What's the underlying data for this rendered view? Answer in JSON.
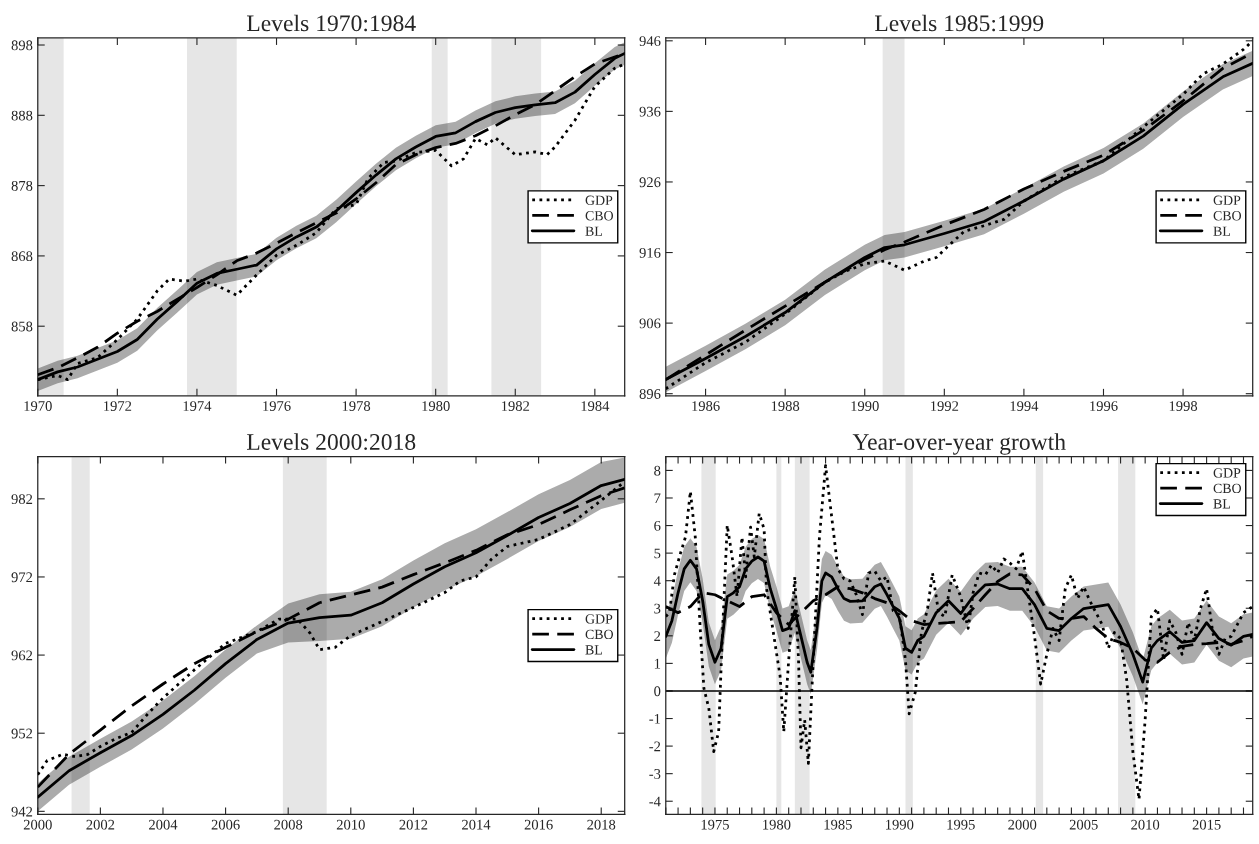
{
  "chart_data": [
    {
      "type": "line",
      "title": "Levels 1970:1984",
      "xlim": [
        1970,
        1984.75
      ],
      "xticks": [
        1970,
        1972,
        1974,
        1976,
        1978,
        1980,
        1982,
        1984
      ],
      "ylim": [
        848.1,
        899
      ],
      "yticks": [
        858,
        868,
        878,
        888,
        898
      ],
      "legend": "right",
      "bands": [
        {
          "axis": "x",
          "from": 1970,
          "to": 1970.65,
          "color": "#e6e6e6"
        },
        {
          "axis": "x",
          "from": 1973.75,
          "to": 1975,
          "color": "#e6e6e6"
        },
        {
          "axis": "x",
          "from": 1979.9,
          "to": 1980.3,
          "color": "#e6e6e6"
        },
        {
          "axis": "x",
          "from": 1981.4,
          "to": 1982.65,
          "color": "#e6e6e6"
        }
      ],
      "series": [
        {
          "name": "GDP",
          "color": "#000000",
          "line_style": "dotted",
          "x": [
            1970,
            1970.5,
            1970.75,
            1971,
            1971.5,
            1972,
            1972.5,
            1973,
            1973.3,
            1973.7,
            1974,
            1974.5,
            1975,
            1975.5,
            1976,
            1976.5,
            1977,
            1977.5,
            1978,
            1978.3,
            1978.7,
            1979,
            1979.5,
            1980,
            1980.4,
            1980.7,
            1981,
            1981.3,
            1981.5,
            1982,
            1982.5,
            1982.8,
            1983,
            1983.5,
            1984,
            1984.5,
            1984.75
          ],
          "values": [
            850.4,
            851,
            850.4,
            852.7,
            853.5,
            856.1,
            859,
            863,
            864.7,
            864.4,
            864.7,
            863.8,
            862.4,
            865.3,
            868.1,
            869.5,
            871.3,
            874.7,
            875.3,
            879,
            881.3,
            881.5,
            882.7,
            883,
            880.8,
            881.8,
            884.7,
            883.8,
            884.8,
            882.4,
            882.8,
            882.4,
            883.5,
            887.3,
            892.1,
            894.7,
            895.3
          ]
        },
        {
          "name": "CBO",
          "color": "#000000",
          "line_style": "dashed",
          "x": [
            1970,
            1970.5,
            1971,
            1971.5,
            1972,
            1972.5,
            1973,
            1973.5,
            1974,
            1974.5,
            1975,
            1975.5,
            1976,
            1976.5,
            1977,
            1977.5,
            1978,
            1978.5,
            1979,
            1979.5,
            1980,
            1980.5,
            1981,
            1981.5,
            1982,
            1982.5,
            1983,
            1983.5,
            1984,
            1984.75
          ],
          "values": [
            851.1,
            852.1,
            853.5,
            855,
            857,
            858.7,
            860.1,
            861.8,
            863.5,
            865.3,
            867.3,
            868.4,
            869.8,
            871.3,
            872.7,
            874.1,
            876.1,
            878.4,
            881,
            882.4,
            883.4,
            884,
            885.1,
            886.5,
            888.1,
            889.5,
            891.5,
            893.5,
            895.3,
            896.8
          ]
        },
        {
          "name": "BL",
          "color": "#000000",
          "line_style": "solid",
          "x": [
            1970,
            1970.5,
            1971,
            1971.5,
            1972,
            1972.5,
            1973,
            1973.5,
            1974,
            1974.5,
            1975,
            1975.5,
            1976,
            1976.5,
            1977,
            1977.5,
            1978,
            1978.5,
            1979,
            1979.5,
            1980,
            1980.5,
            1981,
            1981.5,
            1982,
            1982.5,
            1983,
            1983.5,
            1984,
            1984.5,
            1984.75
          ],
          "values": [
            850.4,
            851.5,
            852.2,
            853.3,
            854.4,
            856.1,
            859,
            861.5,
            864.1,
            865.5,
            866.1,
            866.7,
            869,
            870.7,
            872.1,
            874.4,
            877,
            879.5,
            881.8,
            883.5,
            885,
            885.5,
            887.1,
            888.4,
            889.1,
            889.5,
            889.8,
            891.3,
            893.8,
            896.1,
            896.8
          ],
          "lower": [
            848.8,
            849.9,
            850.6,
            851.7,
            852.8,
            854.5,
            857.4,
            859.9,
            862.5,
            863.9,
            864.5,
            865.1,
            867.4,
            869.1,
            870.5,
            872.8,
            875.4,
            877.9,
            880.2,
            881.9,
            883.4,
            883.9,
            885.5,
            886.8,
            887.5,
            887.9,
            888.2,
            889.7,
            892.2,
            894.5,
            895.2
          ],
          "upper": [
            852,
            853.1,
            853.8,
            854.9,
            856,
            857.7,
            860.6,
            863.1,
            865.7,
            867.1,
            867.7,
            868.3,
            870.6,
            872.3,
            873.7,
            876,
            878.6,
            881.1,
            883.4,
            885.1,
            886.6,
            887.1,
            888.7,
            890,
            890.7,
            891.1,
            891.4,
            892.9,
            895.4,
            897.7,
            898.4
          ]
        }
      ]
    },
    {
      "type": "line",
      "title": "Levels 1985:1999",
      "xlim": [
        1985,
        1999.75
      ],
      "xticks": [
        1986,
        1988,
        1990,
        1992,
        1994,
        1996,
        1998
      ],
      "ylim": [
        895.7,
        946.4
      ],
      "yticks": [
        896,
        906,
        916,
        926,
        936,
        946
      ],
      "legend": "right",
      "bands": [
        {
          "axis": "x",
          "from": 1990.45,
          "to": 1991,
          "color": "#e6e6e6"
        }
      ],
      "series": [
        {
          "name": "GDP",
          "color": "#000000",
          "line_style": "dotted",
          "x": [
            1985,
            1986,
            1987,
            1988,
            1989,
            1989.5,
            1990,
            1990.5,
            1991,
            1991.5,
            1991.8,
            1992,
            1992.5,
            1993,
            1993.5,
            1994,
            1995,
            1996,
            1997,
            1998,
            1998.5,
            1999,
            1999.5,
            1999.75
          ],
          "values": [
            896.7,
            900.4,
            903.3,
            907.3,
            911.8,
            913.3,
            914.4,
            914.8,
            913.5,
            914.8,
            915.3,
            916.4,
            919,
            919.8,
            920.7,
            923.3,
            926.7,
            929,
            933.8,
            938.4,
            941.3,
            942.7,
            944.7,
            946
          ]
        },
        {
          "name": "CBO",
          "color": "#000000",
          "line_style": "dashed",
          "x": [
            1985,
            1986,
            1987,
            1988,
            1989,
            1990,
            1990.5,
            1991,
            1992,
            1993,
            1994,
            1995,
            1996,
            1997,
            1998,
            1999,
            1999.75
          ],
          "values": [
            898,
            901.5,
            905,
            908.4,
            911.8,
            915,
            916.4,
            917.5,
            919.9,
            922.1,
            925,
            927.5,
            929.8,
            933.3,
            937.5,
            942.1,
            944.3
          ]
        },
        {
          "name": "BL",
          "color": "#000000",
          "line_style": "solid",
          "x": [
            1985,
            1986,
            1987,
            1988,
            1989,
            1990,
            1990.5,
            1991,
            1992,
            1993,
            1994,
            1995,
            1996,
            1997,
            1998,
            1999,
            1999.75
          ],
          "values": [
            898,
            901,
            904.1,
            907.5,
            911.8,
            915.3,
            916.7,
            917.1,
            918.7,
            920.4,
            923.3,
            926.4,
            929,
            932.5,
            937,
            940.9,
            942.8
          ],
          "lower": [
            896.2,
            899.2,
            902.3,
            905.7,
            910,
            913.5,
            914.9,
            915.3,
            916.9,
            918.6,
            921.5,
            924.6,
            927.2,
            930.7,
            935.2,
            939.1,
            941
          ],
          "upper": [
            899.8,
            902.8,
            905.9,
            909.3,
            913.6,
            917.1,
            918.5,
            918.9,
            920.5,
            922.2,
            925.1,
            928.2,
            930.8,
            934.3,
            938.8,
            942.7,
            944.6
          ]
        }
      ]
    },
    {
      "type": "line",
      "title": "Levels 2000:2018",
      "xlim": [
        2000,
        2018.75
      ],
      "xticks": [
        2000,
        2002,
        2004,
        2006,
        2008,
        2010,
        2012,
        2014,
        2016,
        2018
      ],
      "ylim": [
        941.6,
        987.4
      ],
      "yticks": [
        942,
        952,
        962,
        972,
        982
      ],
      "legend": "right",
      "bands": [
        {
          "axis": "x",
          "from": 2001.08,
          "to": 2001.66,
          "color": "#e6e6e6"
        },
        {
          "axis": "x",
          "from": 2007.83,
          "to": 2009.23,
          "color": "#e6e6e6"
        }
      ],
      "series": [
        {
          "name": "GDP",
          "color": "#000000",
          "line_style": "dotted",
          "x": [
            2000,
            2000.3,
            2000.8,
            2001.2,
            2001.6,
            2002,
            2002.5,
            2003,
            2003.5,
            2004,
            2005,
            2006,
            2007,
            2007.7,
            2008.3,
            2008.7,
            2009,
            2009.5,
            2010,
            2011,
            2012,
            2013,
            2013.5,
            2014,
            2014.5,
            2015,
            2016,
            2017,
            2018,
            2018.75
          ],
          "values": [
            946.7,
            948.5,
            949.3,
            949,
            949.3,
            950.3,
            951.3,
            952.1,
            954.4,
            956.5,
            960.1,
            963.5,
            965,
            966.6,
            966.6,
            964.8,
            962.7,
            963,
            964.5,
            966.3,
            968.1,
            970,
            971.5,
            972,
            974.3,
            975.9,
            976.8,
            978.7,
            981.8,
            984.2
          ]
        },
        {
          "name": "CBO",
          "color": "#000000",
          "line_style": "dashed",
          "x": [
            2000,
            2001,
            2002,
            2003,
            2004,
            2005,
            2006,
            2007,
            2008,
            2009,
            2010,
            2011,
            2012,
            2013,
            2014,
            2015,
            2016,
            2017,
            2018,
            2018.75
          ],
          "values": [
            945.1,
            949.3,
            952.4,
            955.5,
            958.3,
            960.9,
            963,
            965,
            966.6,
            968.7,
            969.7,
            970.7,
            972.3,
            973.8,
            975.4,
            977.4,
            978.7,
            980.6,
            982.4,
            983.4
          ]
        },
        {
          "name": "BL",
          "color": "#000000",
          "line_style": "solid",
          "x": [
            2000,
            2001,
            2002,
            2003,
            2004,
            2005,
            2006,
            2007,
            2008,
            2009,
            2010,
            2011,
            2012,
            2013,
            2014,
            2015,
            2016,
            2017,
            2018,
            2018.75
          ],
          "values": [
            943.8,
            947.2,
            949.5,
            951.7,
            954.4,
            957.5,
            960.9,
            964,
            966.1,
            966.8,
            967.1,
            968.7,
            971.1,
            973.3,
            975.1,
            977.3,
            979.6,
            981.4,
            983.7,
            984.5
          ],
          "lower": [
            942,
            945.4,
            947.7,
            949.9,
            952.6,
            955.7,
            959.1,
            962.2,
            963.6,
            963.8,
            964.1,
            965.7,
            968.1,
            970.3,
            972.1,
            974.3,
            976.6,
            978.4,
            980.7,
            981.5
          ],
          "upper": [
            945.6,
            949,
            951.3,
            953.5,
            956.2,
            959.3,
            962.7,
            965.8,
            968.6,
            969.8,
            970.1,
            971.7,
            974.1,
            976.3,
            978.1,
            980.3,
            982.6,
            984.4,
            986.7,
            987.3
          ]
        }
      ]
    },
    {
      "type": "line",
      "title": "Year-over-year growth",
      "xlim": [
        1971,
        2018.75
      ],
      "xticks": [
        {
          "value": 1971,
          "label": null
        },
        {
          "value": 1972,
          "label": null
        },
        {
          "value": 1973,
          "label": null
        },
        {
          "value": 1974,
          "label": null
        },
        1975,
        {
          "value": 1976,
          "label": null
        },
        {
          "value": 1977,
          "label": null
        },
        {
          "value": 1978,
          "label": null
        },
        {
          "value": 1979,
          "label": null
        },
        1980,
        {
          "value": 1981,
          "label": null
        },
        {
          "value": 1982,
          "label": null
        },
        {
          "value": 1983,
          "label": null
        },
        {
          "value": 1984,
          "label": null
        },
        1985,
        {
          "value": 1986,
          "label": null
        },
        {
          "value": 1987,
          "label": null
        },
        {
          "value": 1988,
          "label": null
        },
        {
          "value": 1989,
          "label": null
        },
        1990,
        {
          "value": 1991,
          "label": null
        },
        {
          "value": 1992,
          "label": null
        },
        {
          "value": 1993,
          "label": null
        },
        {
          "value": 1994,
          "label": null
        },
        1995,
        {
          "value": 1996,
          "label": null
        },
        {
          "value": 1997,
          "label": null
        },
        {
          "value": 1998,
          "label": null
        },
        {
          "value": 1999,
          "label": null
        },
        2000,
        {
          "value": 2001,
          "label": null
        },
        {
          "value": 2002,
          "label": null
        },
        {
          "value": 2003,
          "label": null
        },
        {
          "value": 2004,
          "label": null
        },
        2005,
        {
          "value": 2006,
          "label": null
        },
        {
          "value": 2007,
          "label": null
        },
        {
          "value": 2008,
          "label": null
        },
        {
          "value": 2009,
          "label": null
        },
        2010,
        {
          "value": 2011,
          "label": null
        },
        {
          "value": 2012,
          "label": null
        },
        {
          "value": 2013,
          "label": null
        },
        {
          "value": 2014,
          "label": null
        },
        2015,
        {
          "value": 2016,
          "label": null
        },
        {
          "value": 2017,
          "label": null
        },
        {
          "value": 2018,
          "label": null
        }
      ],
      "ylim": [
        -4.48,
        8.5
      ],
      "yticks": [
        -4,
        -3,
        -2,
        -1,
        0,
        1,
        2,
        3,
        4,
        5,
        6,
        7,
        8
      ],
      "legend": "top right",
      "ref_lines": [
        {
          "axis": "y",
          "value": 0,
          "color": "#000000",
          "line_style": "solid"
        }
      ],
      "bands": [
        {
          "axis": "x",
          "from": 1973.9,
          "to": 1975.06,
          "color": "#e6e6e6"
        },
        {
          "axis": "x",
          "from": 1980,
          "to": 1980.4,
          "color": "#e6e6e6"
        },
        {
          "axis": "x",
          "from": 1981.5,
          "to": 1982.7,
          "color": "#e6e6e6"
        },
        {
          "axis": "x",
          "from": 1990.5,
          "to": 1991.1,
          "color": "#e6e6e6"
        },
        {
          "axis": "x",
          "from": 2001.1,
          "to": 2001.7,
          "color": "#e6e6e6"
        },
        {
          "axis": "x",
          "from": 2007.8,
          "to": 2009.2,
          "color": "#e6e6e6"
        }
      ],
      "series": [
        {
          "name": "GDP",
          "color": "#000000",
          "line_style": "dotted",
          "x": [
            1971,
            1971.3,
            1971.7,
            1972.2,
            1972.6,
            1973,
            1973.4,
            1973.8,
            1974.1,
            1974.5,
            1974.9,
            1975.3,
            1975.6,
            1976,
            1976.4,
            1976.8,
            1977.2,
            1977.5,
            1977.9,
            1978.2,
            1978.6,
            1979,
            1979.2,
            1979.7,
            1980,
            1980.3,
            1980.6,
            1981,
            1981.5,
            1981.8,
            1982,
            1982.3,
            1982.6,
            1983,
            1983.5,
            1984,
            1984.5,
            1985,
            1985.5,
            1986,
            1986.5,
            1987,
            1987.5,
            1988,
            1988.5,
            1989,
            1989.5,
            1990,
            1990.5,
            1990.8,
            1991.3,
            1991.8,
            1992.3,
            1992.7,
            1993.2,
            1993.7,
            1994.3,
            1995,
            1995.6,
            1996,
            1996.5,
            1997,
            1997.5,
            1998,
            1998.5,
            1999,
            1999.5,
            2000,
            2000.5,
            2001,
            2001.5,
            2002,
            2002.5,
            2003,
            2003.5,
            2004,
            2004.5,
            2005,
            2005.5,
            2006,
            2006.5,
            2007,
            2007.5,
            2008,
            2008.5,
            2009,
            2009.5,
            2010,
            2010.5,
            2011,
            2011.5,
            2012,
            2012.5,
            2013,
            2013.5,
            2014,
            2014.5,
            2015,
            2015.5,
            2016,
            2016.5,
            2017,
            2017.5,
            2018,
            2018.75
          ],
          "values": [
            2.7,
            2.84,
            4.21,
            5,
            5.58,
            7.24,
            5.58,
            2.27,
            0.1,
            -0.62,
            -2.2,
            -1.48,
            1.98,
            6.01,
            4.86,
            3.42,
            5.58,
            4.14,
            5.94,
            4.86,
            6.44,
            5.87,
            3.71,
            2.27,
            1.4,
            0.54,
            -1.48,
            1.12,
            4.14,
            1.12,
            -2.06,
            -1.05,
            -2.63,
            1.12,
            5.58,
            8.17,
            6.3,
            4.43,
            4.07,
            3.99,
            3.49,
            2.77,
            4.28,
            4.35,
            3.99,
            4.14,
            2.91,
            2.77,
            1.12,
            -0.83,
            -0.04,
            2.12,
            2.99,
            4.28,
            2.84,
            2.7,
            4.21,
            3.42,
            2.27,
            3.56,
            4.28,
            4.21,
            4.57,
            4.28,
            4.79,
            4.64,
            4.43,
            5.07,
            3.49,
            1.98,
            0.25,
            1.33,
            2.27,
            1.83,
            3.71,
            4.21,
            3.35,
            3.78,
            3.27,
            2.84,
            2.41,
            1.55,
            2.12,
            1.9,
            0.39,
            -2.2,
            -3.93,
            -1.04,
            2.7,
            2.99,
            1.12,
            2.55,
            2.12,
            1.33,
            2.48,
            1.83,
            2.99,
            3.71,
            2.12,
            1.33,
            1.9,
            1.98,
            2.41,
            2.84,
            3.06
          ]
        },
        {
          "name": "CBO",
          "color": "#000000",
          "line_style": "dashed",
          "x": [
            1971,
            1972,
            1973,
            1974,
            1975,
            1976,
            1977,
            1978,
            1979,
            1980,
            1981,
            1982,
            1983,
            1984,
            1985,
            1986,
            1987,
            1988,
            1989,
            1990,
            1991,
            1992,
            1993,
            1994,
            1995,
            1996,
            1997,
            1998,
            1999,
            2000,
            2001,
            2002,
            2003,
            2004,
            2005,
            2006,
            2007,
            2008,
            2009,
            2010,
            2011,
            2012,
            2013,
            2014,
            2015,
            2016,
            2017,
            2018,
            2018.75
          ],
          "values": [
            3.06,
            2.84,
            3.06,
            3.56,
            3.49,
            3.27,
            3.06,
            3.42,
            3.49,
            2.84,
            2.41,
            2.84,
            3.27,
            3.49,
            3.78,
            3.71,
            3.56,
            3.35,
            3.2,
            2.91,
            2.55,
            2.41,
            2.45,
            2.48,
            2.52,
            2.99,
            3.49,
            3.97,
            4.25,
            4.21,
            3.71,
            2.91,
            2.63,
            2.63,
            2.7,
            2.27,
            1.9,
            1.76,
            1.55,
            1.12,
            1.04,
            1.4,
            1.62,
            1.69,
            1.72,
            1.76,
            1.69,
            1.83,
            1.98
          ]
        },
        {
          "name": "BL",
          "color": "#000000",
          "line_style": "solid",
          "x": [
            1971,
            1971.5,
            1972,
            1972.5,
            1973,
            1973.5,
            1974,
            1974.5,
            1975,
            1975.5,
            1976,
            1976.5,
            1977,
            1977.5,
            1978,
            1978.5,
            1979,
            1979.5,
            1980,
            1980.5,
            1981,
            1981.5,
            1982,
            1982.5,
            1982.8,
            1983.3,
            1983.7,
            1984,
            1984.5,
            1985,
            1985.5,
            1986,
            1987,
            1988,
            1988.5,
            1989,
            1989.5,
            1990,
            1990.5,
            1991,
            1991.5,
            1992,
            1993,
            1994,
            1995,
            1996,
            1997,
            1998,
            1999,
            2000,
            2001,
            2002,
            2003,
            2004,
            2005,
            2006,
            2007,
            2008,
            2009,
            2009.8,
            2010.5,
            2011,
            2012,
            2013,
            2014,
            2015,
            2016,
            2017,
            2018,
            2018.75
          ],
          "values": [
            1.98,
            2.55,
            3.56,
            4.43,
            4.74,
            4.43,
            3.27,
            1.69,
            1.04,
            1.55,
            3.42,
            3.56,
            3.78,
            4.43,
            4.71,
            4.86,
            4.71,
            3.71,
            2.99,
            2.19,
            2.27,
            2.91,
            1.98,
            1.04,
            0.68,
            2.27,
            3.99,
            4.28,
            4.14,
            3.71,
            3.35,
            3.25,
            3.27,
            3.78,
            3.88,
            3.49,
            3.06,
            2.63,
            1.55,
            1.4,
            1.83,
            1.98,
            2.84,
            3.27,
            2.81,
            3.42,
            3.85,
            3.88,
            3.71,
            3.71,
            3.13,
            2.27,
            2.19,
            2.63,
            2.99,
            3.06,
            3.13,
            2.34,
            1.33,
            0.32,
            1.55,
            1.83,
            2.15,
            1.76,
            1.83,
            2.48,
            1.9,
            1.66,
            1.98,
            2.05
          ],
          "lower": [
            1.18,
            1.75,
            2.76,
            3.63,
            3.94,
            3.63,
            2.47,
            0.89,
            0.24,
            0.75,
            2.62,
            2.76,
            2.98,
            3.63,
            3.91,
            4.06,
            3.91,
            2.91,
            2.19,
            1.39,
            1.47,
            2.11,
            1.18,
            0.24,
            -0.12,
            1.47,
            3.19,
            3.48,
            3.34,
            2.91,
            2.55,
            2.45,
            2.47,
            2.98,
            3.08,
            2.69,
            2.26,
            1.83,
            0.75,
            0.6,
            1.03,
            1.18,
            2.04,
            2.47,
            2.01,
            2.62,
            3.05,
            3.08,
            2.91,
            2.91,
            2.33,
            1.47,
            1.39,
            1.83,
            2.19,
            2.26,
            2.33,
            1.54,
            0.53,
            -0.48,
            0.75,
            1.03,
            1.35,
            0.96,
            1.03,
            1.68,
            1.1,
            0.86,
            1.18,
            1.25
          ],
          "upper": [
            2.78,
            3.35,
            4.36,
            5.23,
            5.54,
            5.23,
            4.07,
            2.49,
            1.84,
            2.35,
            4.22,
            4.36,
            4.58,
            5.23,
            5.51,
            5.66,
            5.51,
            4.51,
            3.79,
            2.99,
            3.07,
            3.71,
            2.78,
            1.84,
            1.48,
            3.07,
            4.79,
            5.08,
            4.94,
            4.51,
            4.15,
            4.05,
            4.07,
            4.58,
            4.68,
            4.29,
            3.86,
            3.43,
            2.35,
            2.2,
            2.63,
            2.78,
            3.64,
            4.07,
            3.61,
            4.22,
            4.65,
            4.68,
            4.51,
            4.51,
            3.93,
            3.07,
            2.99,
            3.43,
            3.79,
            3.86,
            3.93,
            3.14,
            2.13,
            1.12,
            2.35,
            2.63,
            2.95,
            2.56,
            2.63,
            3.28,
            2.7,
            2.46,
            2.78,
            2.85
          ]
        }
      ]
    }
  ]
}
